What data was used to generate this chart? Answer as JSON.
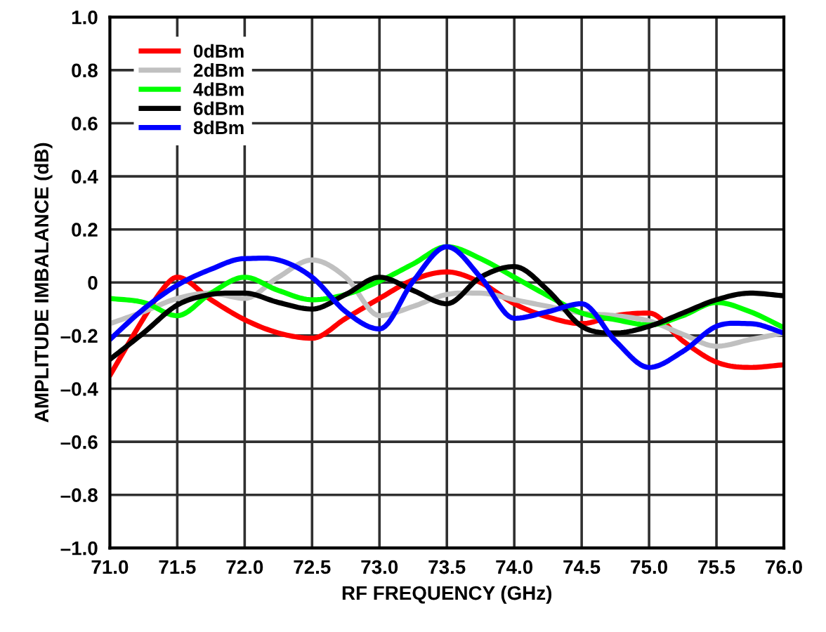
{
  "chart_data": {
    "type": "line",
    "xlabel": "RF FREQUENCY (GHz)",
    "ylabel": "AMPLITUDE IMBALANCE (dB)",
    "x": [
      71.0,
      71.25,
      71.5,
      71.75,
      72.0,
      72.25,
      72.5,
      72.75,
      73.0,
      73.25,
      73.5,
      73.75,
      74.0,
      74.25,
      74.5,
      74.75,
      75.0,
      75.25,
      75.5,
      75.75,
      76.0
    ],
    "series": [
      {
        "name": "0dBm",
        "color": "#ff0000",
        "x": [
          71.0,
          71.25,
          71.4,
          71.5,
          71.75,
          72.0,
          72.25,
          72.5,
          72.75,
          73.0,
          73.25,
          73.5,
          73.75,
          74.0,
          74.25,
          74.5,
          74.75,
          75.0,
          75.25,
          75.5,
          75.75,
          76.0
        ],
        "values": [
          -0.35,
          -0.135,
          -0.02,
          0.02,
          -0.065,
          -0.14,
          -0.19,
          -0.21,
          -0.135,
          -0.06,
          0.01,
          0.04,
          0.0,
          -0.08,
          -0.13,
          -0.155,
          -0.125,
          -0.115,
          -0.22,
          -0.3,
          -0.32,
          -0.31
        ]
      },
      {
        "name": "2dBm",
        "color": "#c0c0c0",
        "values": [
          -0.155,
          -0.11,
          -0.06,
          -0.04,
          -0.06,
          0.02,
          0.085,
          0.02,
          -0.125,
          -0.09,
          -0.045,
          -0.04,
          -0.065,
          -0.09,
          -0.115,
          -0.125,
          -0.145,
          -0.195,
          -0.24,
          -0.215,
          -0.19
        ]
      },
      {
        "name": "4dBm",
        "color": "#00ff00",
        "values": [
          -0.06,
          -0.075,
          -0.125,
          -0.04,
          0.02,
          -0.03,
          -0.065,
          -0.045,
          0.005,
          0.07,
          0.135,
          0.09,
          0.02,
          -0.05,
          -0.115,
          -0.14,
          -0.16,
          -0.125,
          -0.075,
          -0.11,
          -0.17
        ]
      },
      {
        "name": "6dBm",
        "color": "#000000",
        "values": [
          -0.29,
          -0.19,
          -0.085,
          -0.045,
          -0.04,
          -0.075,
          -0.1,
          -0.045,
          0.02,
          -0.03,
          -0.08,
          0.02,
          0.06,
          -0.03,
          -0.165,
          -0.19,
          -0.165,
          -0.115,
          -0.065,
          -0.04,
          -0.05
        ]
      },
      {
        "name": "8dBm",
        "color": "#0000ff",
        "values": [
          -0.215,
          -0.1,
          -0.01,
          0.05,
          0.09,
          0.085,
          0.02,
          -0.11,
          -0.175,
          0.005,
          0.135,
          0.02,
          -0.135,
          -0.11,
          -0.08,
          -0.22,
          -0.32,
          -0.26,
          -0.165,
          -0.155,
          -0.19
        ]
      }
    ],
    "xlim": [
      71.0,
      76.0
    ],
    "ylim": [
      -1.0,
      1.0
    ],
    "xticks": [
      {
        "value": 71.0,
        "label": "71.0"
      },
      71.5,
      {
        "value": 72.0,
        "label": "72.0"
      },
      72.5,
      {
        "value": 73.0,
        "label": "73.0"
      },
      73.5,
      {
        "value": 74.0,
        "label": "74.0"
      },
      74.5,
      {
        "value": 75.0,
        "label": "75.0"
      },
      75.5,
      {
        "value": 76.0,
        "label": "76.0"
      }
    ],
    "yticks": [
      {
        "value": 1.0,
        "label": "1.0"
      },
      0.8,
      0.6,
      0.4,
      0.2,
      0,
      {
        "value": -0.2,
        "label": "–0.2"
      },
      {
        "value": -0.4,
        "label": "–0.4"
      },
      {
        "value": -0.6,
        "label": "–0.6"
      },
      {
        "value": -0.8,
        "label": "–0.8"
      },
      {
        "value": -1.0,
        "label": "–1.0"
      }
    ],
    "grid": true,
    "legend": "top left",
    "marker": "none",
    "line_style": "solid"
  }
}
